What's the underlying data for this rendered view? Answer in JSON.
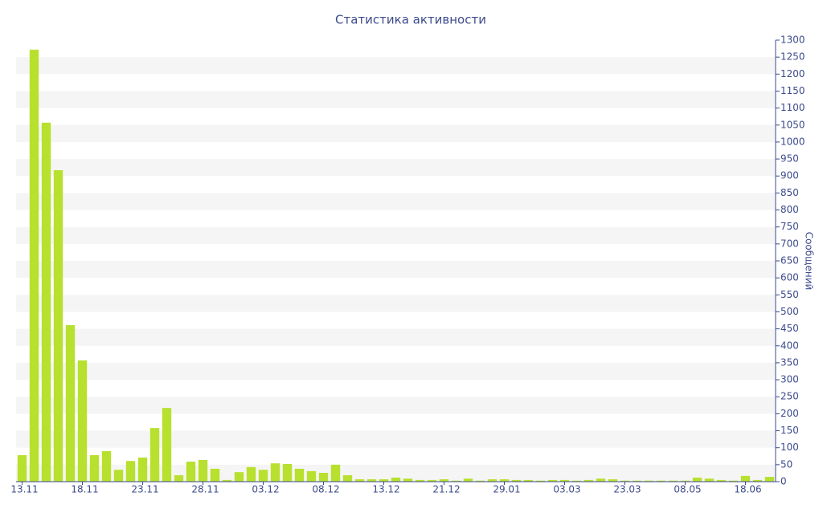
{
  "chart_data": {
    "type": "bar",
    "title": "Статистика активности",
    "y_axis_label": "Сообщений",
    "categories": [
      "13.11",
      null,
      null,
      null,
      null,
      "18.11",
      null,
      null,
      null,
      null,
      "23.11",
      null,
      null,
      null,
      null,
      "28.11",
      null,
      null,
      null,
      null,
      "03.12",
      null,
      null,
      null,
      null,
      "08.12",
      null,
      null,
      null,
      null,
      "13.12",
      null,
      null,
      null,
      null,
      "21.12",
      null,
      null,
      null,
      null,
      "29.01",
      null,
      null,
      null,
      null,
      "03.03",
      null,
      null,
      null,
      null,
      "23.03",
      null,
      null,
      null,
      null,
      "08.05",
      null,
      null,
      null,
      null,
      "18.06",
      null,
      null
    ],
    "values": [
      78,
      1272,
      1057,
      917,
      461,
      357,
      78,
      90,
      35,
      61,
      71,
      158,
      217,
      19,
      59,
      64,
      38,
      5,
      28,
      43,
      35,
      54,
      52,
      38,
      31,
      26,
      50,
      19,
      7,
      7,
      7,
      12,
      9,
      5,
      5,
      7,
      3,
      9,
      3,
      7,
      7,
      5,
      5,
      3,
      5,
      5,
      3,
      5,
      9,
      7,
      3,
      3,
      3,
      3,
      3,
      3,
      12,
      9,
      5,
      3,
      17,
      5,
      14
    ],
    "color": "#b8e02e",
    "ylim": [
      0,
      1300
    ],
    "yticks": [
      0,
      50,
      100,
      150,
      200,
      250,
      300,
      350,
      400,
      450,
      500,
      550,
      600,
      650,
      700,
      750,
      800,
      850,
      900,
      950,
      1000,
      1050,
      1100,
      1150,
      1200,
      1250,
      1300
    ],
    "y_axis_side": "right",
    "grid": true
  }
}
